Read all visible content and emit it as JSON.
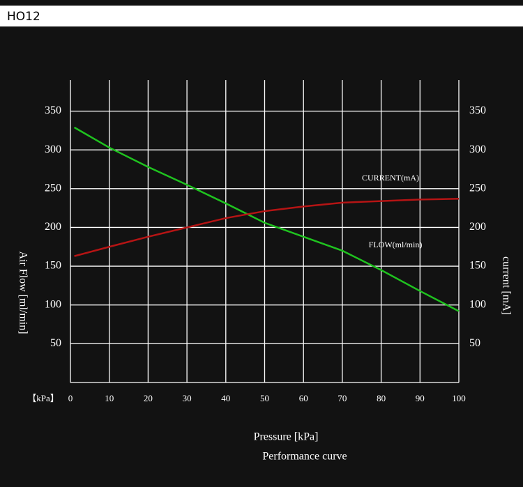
{
  "header": {
    "title": "HO12"
  },
  "chart_data": {
    "type": "line",
    "xlabel": "Pressure [kPa]",
    "x_unit_label": "【kPa】",
    "caption": "Performance curve",
    "ylabel": "Air Flow [ml/min]",
    "y2label": "current [mA]",
    "x": [
      1,
      10,
      20,
      30,
      40,
      50,
      60,
      70,
      80,
      90,
      100
    ],
    "series": [
      {
        "name": "FLOW(ml/min)",
        "color": "#1fc21f",
        "values": [
          329,
          303,
          278,
          255,
          231,
          206,
          188,
          170,
          145,
          118,
          92
        ]
      },
      {
        "name": "CURRENT(mA)",
        "color": "#b51414",
        "axis": "y2",
        "values": [
          163,
          175,
          188,
          200,
          212,
          221,
          227,
          232,
          234,
          236,
          237
        ]
      }
    ],
    "xlim": [
      0,
      100
    ],
    "xticks": [
      0,
      10,
      20,
      30,
      40,
      50,
      60,
      70,
      80,
      90,
      100
    ],
    "ylim": [
      0,
      390
    ],
    "yticks": [
      50,
      100,
      150,
      200,
      250,
      300,
      350
    ],
    "y2lim": [
      0,
      390
    ],
    "y2ticks": [
      50,
      100,
      150,
      200,
      250,
      300,
      350
    ],
    "grid": true
  }
}
